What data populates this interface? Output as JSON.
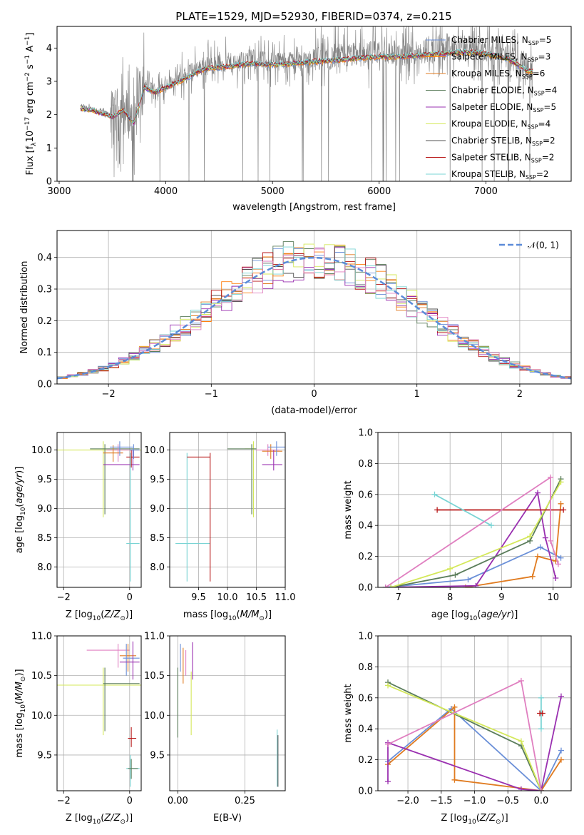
{
  "colors": {
    "Chabrier MILES": "#6a8fd8",
    "Salpeter MILES": "#ff7f0e",
    "Kroupa MILES": "#e07b20",
    "Chabrier ELODIE": "#5b7d5b",
    "Salpeter ELODIE": "#9a30b0",
    "Kroupa ELODIE": "#d4e85a",
    "Chabrier STELIB": "#505050",
    "Salpeter STELIB": "#b81818",
    "Kroupa STELIB": "#7ad4d4",
    "data": "#808080",
    "pink": "#e07fc0"
  },
  "chart_data": [
    {
      "id": "spectrum",
      "type": "line",
      "title": "PLATE=1529, MJD=52930, FIBERID=0374, z=0.215",
      "xlabel": "wavelength [Angstrom, rest frame]",
      "ylabel": "Flux [f_λ 10^-17 erg cm^-2 s^-1 A^-1]",
      "xlim": [
        2980,
        7800
      ],
      "ylim": [
        0,
        4.65
      ],
      "xticks": [
        "3000",
        "4000",
        "5000",
        "6000",
        "7000"
      ],
      "yticks": [
        "0",
        "1",
        "2",
        "3",
        "4"
      ],
      "spectrum_points": [
        [
          3200,
          2.25
        ],
        [
          3300,
          2.2
        ],
        [
          3400,
          2.1
        ],
        [
          3500,
          2.0
        ],
        [
          3600,
          2.2
        ],
        [
          3700,
          1.8
        ],
        [
          3800,
          2.9
        ],
        [
          3900,
          2.75
        ],
        [
          4000,
          2.9
        ],
        [
          4100,
          3.05
        ],
        [
          4200,
          3.2
        ],
        [
          4300,
          3.4
        ],
        [
          4400,
          3.5
        ],
        [
          4600,
          3.55
        ],
        [
          4800,
          3.65
        ],
        [
          5000,
          3.6
        ],
        [
          5200,
          3.65
        ],
        [
          5400,
          3.7
        ],
        [
          5600,
          3.75
        ],
        [
          5800,
          3.8
        ],
        [
          6000,
          3.85
        ],
        [
          6200,
          3.85
        ],
        [
          6400,
          3.9
        ],
        [
          6600,
          3.95
        ],
        [
          6800,
          4.0
        ],
        [
          7000,
          3.95
        ],
        [
          7200,
          3.8
        ],
        [
          7400,
          3.4
        ]
      ],
      "legend_entries": [
        "Chabrier MILES, N_SSP=5",
        "Salpeter MILES, N_SSP=3",
        "Kroupa MILES, N_SSP=6",
        "Chabrier ELODIE, N_SSP=4",
        "Salpeter ELODIE, N_SSP=5",
        "Kroupa ELODIE, N_SSP=4",
        "Chabrier STELIB, N_SSP=2",
        "Salpeter STELIB, N_SSP=2",
        "Kroupa STELIB, N_SSP=2"
      ],
      "legend_keys": [
        "Chabrier MILES",
        "Salpeter MILES",
        "Kroupa MILES",
        "Chabrier ELODIE",
        "Salpeter ELODIE",
        "Kroupa ELODIE",
        "Chabrier STELIB",
        "Salpeter STELIB",
        "Kroupa STELIB"
      ],
      "legend_position": "upper-right"
    },
    {
      "id": "residuals",
      "type": "histogram",
      "xlabel": "(data-model)/error",
      "ylabel": "Normed distribution",
      "xlim": [
        -2.5,
        2.5
      ],
      "ylim": [
        0,
        0.485
      ],
      "xticks": [
        "-2",
        "-1",
        "0",
        "1",
        "2"
      ],
      "yticks": [
        "0.0",
        "0.1",
        "0.2",
        "0.3",
        "0.4"
      ],
      "grid": true,
      "bin_width": 0.1,
      "reference_curve": "N(0,1)",
      "legend_entries": [
        "𝒩(0, 1)"
      ],
      "legend_position": "upper-right"
    },
    {
      "id": "age_vs_Z",
      "type": "scatter",
      "xlabel": "Z [log10(Z/Z⊙)]",
      "ylabel": "age  [log10(age/yr)]",
      "xlim": [
        -2.2,
        0.35
      ],
      "ylim": [
        7.65,
        10.3
      ],
      "xticks": [
        "-2",
        "0"
      ],
      "yticks": [
        "8.0",
        "8.5",
        "9.0",
        "9.5",
        "10.0"
      ],
      "grid": true
    },
    {
      "id": "age_vs_mass",
      "type": "scatter",
      "xlabel": "mass [log10(M/M⊙)]",
      "xlim": [
        9.0,
        11.0
      ],
      "ylim": [
        7.65,
        10.3
      ],
      "xticks": [
        "9.5",
        "10.0",
        "10.5",
        "11.0"
      ],
      "yticks": [
        "8.0",
        "8.5",
        "9.0",
        "9.5",
        "10.0"
      ],
      "grid": true
    },
    {
      "id": "weight_vs_age",
      "type": "line",
      "xlabel": "age  [log10(age/yr)]",
      "ylabel": "mass weight",
      "xlim": [
        6.6,
        10.35
      ],
      "ylim": [
        0,
        1.0
      ],
      "xticks": [
        "7",
        "8",
        "9",
        "10"
      ],
      "yticks": [
        "0.0",
        "0.2",
        "0.4",
        "0.6",
        "0.8",
        "1.0"
      ],
      "grid": true,
      "series": [
        {
          "key": "Chabrier MILES",
          "x": [
            6.75,
            8.35,
            9.75,
            10.15
          ],
          "y": [
            0.0,
            0.05,
            0.26,
            0.19
          ]
        },
        {
          "key": "Kroupa MILES",
          "x": [
            8.3,
            9.6,
            9.7,
            10.05,
            10.15
          ],
          "y": [
            0.0,
            0.07,
            0.2,
            0.17,
            0.54
          ]
        },
        {
          "key": "Salpeter ELODIE",
          "x": [
            6.75,
            8.5,
            9.7,
            9.85,
            10.05
          ],
          "y": [
            0.0,
            0.01,
            0.61,
            0.32,
            0.06
          ]
        },
        {
          "key": "Chabrier ELODIE",
          "x": [
            6.85,
            8.1,
            9.55,
            10.15
          ],
          "y": [
            0.0,
            0.08,
            0.3,
            0.7
          ]
        },
        {
          "key": "Kroupa ELODIE",
          "x": [
            6.85,
            8.0,
            9.55,
            10.15
          ],
          "y": [
            0.0,
            0.12,
            0.33,
            0.68
          ]
        },
        {
          "key": "Salpeter STELIB",
          "x": [
            7.75,
            10.2
          ],
          "y": [
            0.5,
            0.5
          ]
        },
        {
          "key": "Kroupa STELIB",
          "x": [
            7.7,
            8.8
          ],
          "y": [
            0.6,
            0.4
          ]
        },
        {
          "key": "pink",
          "x": [
            6.75,
            9.95,
            9.95,
            10.1
          ],
          "y": [
            0.0,
            0.71,
            0.3,
            0.15
          ]
        }
      ]
    },
    {
      "id": "mass_vs_Z",
      "type": "scatter",
      "xlabel": "Z [log10(Z/Z⊙)]",
      "ylabel": "mass [log10(M/M⊙)]",
      "xlim": [
        -2.2,
        0.35
      ],
      "ylim": [
        9.05,
        11.0
      ],
      "xticks": [
        "-2",
        "0"
      ],
      "yticks": [
        "9.5",
        "10.0",
        "10.5",
        "11.0"
      ],
      "grid": true
    },
    {
      "id": "mass_vs_EBV",
      "type": "scatter",
      "xlabel": "E(B-V)",
      "xlim": [
        -0.03,
        0.4
      ],
      "ylim": [
        9.05,
        11.0
      ],
      "xticks": [
        "0.00",
        "0.25"
      ],
      "yticks": [
        "9.5",
        "10.0",
        "10.5",
        "11.0"
      ],
      "grid": true
    },
    {
      "id": "weight_vs_Z",
      "type": "line",
      "xlabel": "Z [log10(Z/Z⊙)]",
      "ylabel": "mass weight",
      "xlim": [
        -2.45,
        0.45
      ],
      "ylim": [
        0,
        1.0
      ],
      "xticks": [
        "-2.0",
        "-1.5",
        "-1.0",
        "-0.5",
        "0.0"
      ],
      "yticks": [
        "0.0",
        "0.2",
        "0.4",
        "0.6",
        "0.8",
        "1.0"
      ],
      "grid": true,
      "series": [
        {
          "key": "Chabrier MILES",
          "x": [
            -2.3,
            -1.35,
            0.0,
            0.3
          ],
          "y": [
            0.19,
            0.53,
            0.0,
            0.26
          ]
        },
        {
          "key": "Kroupa MILES",
          "x": [
            -2.3,
            -1.3,
            -1.3,
            0.0,
            0.3
          ],
          "y": [
            0.17,
            0.54,
            0.07,
            0.0,
            0.2
          ]
        },
        {
          "key": "Salpeter ELODIE",
          "x": [
            -2.3,
            -2.3,
            -0.3,
            0.0,
            0.3
          ],
          "y": [
            0.06,
            0.31,
            0.01,
            0.0,
            0.61
          ]
        },
        {
          "key": "Chabrier ELODIE",
          "x": [
            -2.3,
            -0.3,
            0.0
          ],
          "y": [
            0.7,
            0.29,
            0.0
          ]
        },
        {
          "key": "Kroupa ELODIE",
          "x": [
            -2.3,
            -0.3,
            0.0
          ],
          "y": [
            0.68,
            0.32,
            0.0
          ]
        },
        {
          "key": "pink",
          "x": [
            -2.3,
            -0.3,
            0.0
          ],
          "y": [
            0.3,
            0.71,
            0.0
          ]
        },
        {
          "key": "Kroupa STELIB",
          "x": [
            0.0,
            0.0
          ],
          "y": [
            0.6,
            0.4
          ]
        },
        {
          "key": "Salpeter STELIB",
          "x": [
            -0.02,
            0.02
          ],
          "y": [
            0.5,
            0.5
          ]
        }
      ]
    }
  ]
}
